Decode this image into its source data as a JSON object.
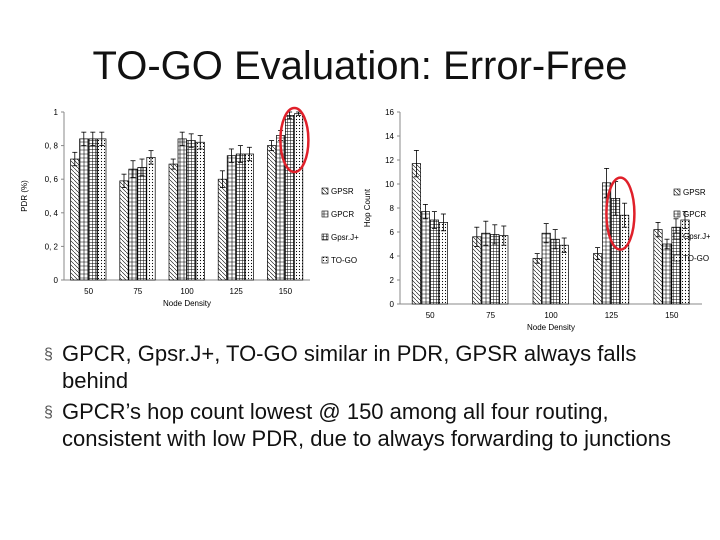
{
  "slide": {
    "title": "TO-GO Evaluation: Error-Free",
    "bullets": [
      "GPCR, Gpsr.J+, TO-GO similar in PDR, GPSR always falls behind",
      "GPCR’s hop count lowest @ 150 among all four routing, consistent with low PDR, due to always forwarding to junctions"
    ],
    "bullet_marker": "§"
  },
  "colors": {
    "highlight": "#e0202a",
    "axis": "#888888",
    "bar_stroke": "#000000"
  },
  "chart_data": [
    {
      "type": "bar",
      "title": "",
      "xlabel": "Node Density",
      "ylabel": "PDR (%)",
      "categories": [
        "50",
        "75",
        "100",
        "125",
        "150"
      ],
      "ylim": [
        0,
        1
      ],
      "yticks": [
        "0",
        "0, 2",
        "0, 4",
        "0, 6",
        "0, 8",
        "1"
      ],
      "grid": false,
      "legend": "right",
      "error_bars": true,
      "series": [
        {
          "name": "GPSR",
          "values": [
            0.72,
            0.59,
            0.69,
            0.6,
            0.8
          ],
          "errors": [
            0.04,
            0.04,
            0.03,
            0.05,
            0.03
          ]
        },
        {
          "name": "GPCR",
          "values": [
            0.84,
            0.66,
            0.84,
            0.74,
            0.86
          ],
          "errors": [
            0.04,
            0.05,
            0.04,
            0.04,
            0.03
          ]
        },
        {
          "name": "Gpsr.J+",
          "values": [
            0.84,
            0.67,
            0.83,
            0.75,
            0.98
          ],
          "errors": [
            0.04,
            0.05,
            0.04,
            0.05,
            0.02
          ]
        },
        {
          "name": "TO-GO",
          "values": [
            0.84,
            0.73,
            0.82,
            0.75,
            0.99
          ],
          "errors": [
            0.04,
            0.04,
            0.04,
            0.04,
            0.01
          ]
        }
      ],
      "highlight": {
        "category": "150",
        "series": [
          "Gpsr.J+",
          "TO-GO"
        ]
      }
    },
    {
      "type": "bar",
      "title": "",
      "xlabel": "Node Density",
      "ylabel": "Hop Count",
      "categories": [
        "50",
        "75",
        "100",
        "125",
        "150"
      ],
      "ylim": [
        0,
        16
      ],
      "yticks": [
        "0",
        "2",
        "4",
        "6",
        "8",
        "10",
        "12",
        "14",
        "16"
      ],
      "grid": false,
      "legend": "right",
      "error_bars": true,
      "series": [
        {
          "name": "GPSR",
          "values": [
            11.7,
            5.6,
            3.8,
            4.2,
            6.2
          ],
          "errors": [
            1.1,
            0.8,
            0.4,
            0.5,
            0.6
          ]
        },
        {
          "name": "GPCR",
          "values": [
            7.7,
            5.9,
            5.9,
            10.1,
            5.0
          ],
          "errors": [
            0.6,
            1.0,
            0.8,
            1.2,
            0.4
          ]
        },
        {
          "name": "Gpsr.J+",
          "values": [
            7.0,
            5.8,
            5.4,
            8.8,
            6.4
          ],
          "errors": [
            0.7,
            0.8,
            0.8,
            1.4,
            0.7
          ]
        },
        {
          "name": "TO-GO",
          "values": [
            6.8,
            5.7,
            4.9,
            7.4,
            7.0
          ],
          "errors": [
            0.7,
            0.8,
            0.6,
            1.0,
            0.7
          ]
        }
      ],
      "highlight": {
        "category": "125",
        "series": [
          "Gpsr.J+",
          "TO-GO"
        ]
      }
    }
  ]
}
